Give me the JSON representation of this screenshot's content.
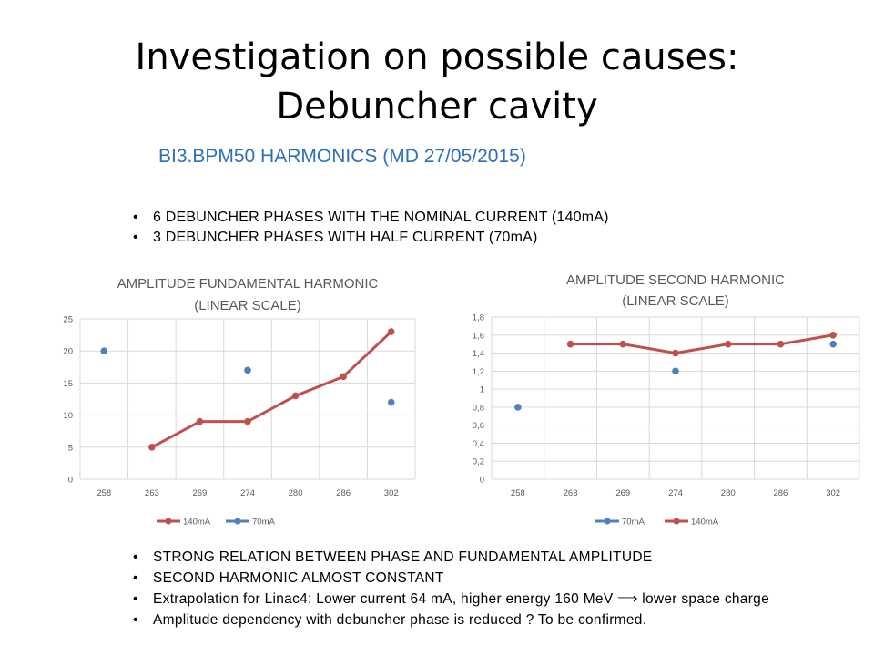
{
  "slide": {
    "title_line1": "Investigation on possible causes:",
    "title_line2": "Debuncher cavity",
    "subtitle": "BI3.BPM50 HARMONICS (MD 27/05/2015)"
  },
  "top_bullets": [
    "6 DEBUNCHER PHASES WITH THE NOMINAL CURRENT (140mA)",
    "3 DEBUNCHER PHASES WITH HALF CURRENT (70mA)"
  ],
  "bottom_bullets": [
    "STRONG RELATION BETWEEN PHASE AND FUNDAMENTAL AMPLITUDE",
    "SECOND HARMONIC ALMOST CONSTANT",
    "Extrapolation for Linac4: Lower current 64 mA, higher energy 160 MeV ⟹ lower space charge",
    "Amplitude dependency with debuncher phase is reduced ? To be confirmed."
  ],
  "colors": {
    "title": "#000000",
    "subtitle": "#2e6fbc",
    "series_140mA": "#c0504d",
    "series_70mA": "#4f81bd",
    "grid": "#d9d9d9",
    "chart_text": "#595959"
  },
  "chart_data": [
    {
      "type": "line",
      "title_line1": "AMPLITUDE FUNDAMENTAL HARMONIC",
      "title_line2": "(LINEAR SCALE)",
      "categories": [
        "258",
        "263",
        "269",
        "274",
        "280",
        "286",
        "302"
      ],
      "y_ticks": [
        "0",
        "5",
        "10",
        "15",
        "20",
        "25"
      ],
      "ylim": [
        0,
        25
      ],
      "grid": true,
      "legend_position": "bottom",
      "legend_order": [
        "140mA",
        "70mA"
      ],
      "series": [
        {
          "name": "140mA",
          "style": "line-markers",
          "values": [
            null,
            5,
            9,
            9,
            13,
            16,
            23
          ]
        },
        {
          "name": "70mA",
          "style": "markers",
          "values": [
            20,
            null,
            null,
            17,
            null,
            null,
            12
          ]
        }
      ]
    },
    {
      "type": "line",
      "title_line1": "AMPLITUDE SECOND HARMONIC",
      "title_line2": "(LINEAR SCALE)",
      "categories": [
        "258",
        "263",
        "269",
        "274",
        "280",
        "286",
        "302"
      ],
      "y_ticks": [
        "0",
        "0,2",
        "0,4",
        "0,6",
        "0,8",
        "1",
        "1,2",
        "1,4",
        "1,6",
        "1,8"
      ],
      "ylim": [
        0,
        1.8
      ],
      "grid": true,
      "legend_position": "bottom",
      "legend_order": [
        "70mA",
        "140mA"
      ],
      "series": [
        {
          "name": "140mA",
          "style": "line-markers",
          "values": [
            null,
            1.5,
            1.5,
            1.4,
            1.5,
            1.5,
            1.6
          ]
        },
        {
          "name": "70mA",
          "style": "markers",
          "values": [
            0.8,
            null,
            null,
            1.2,
            null,
            null,
            1.5
          ]
        }
      ]
    }
  ]
}
